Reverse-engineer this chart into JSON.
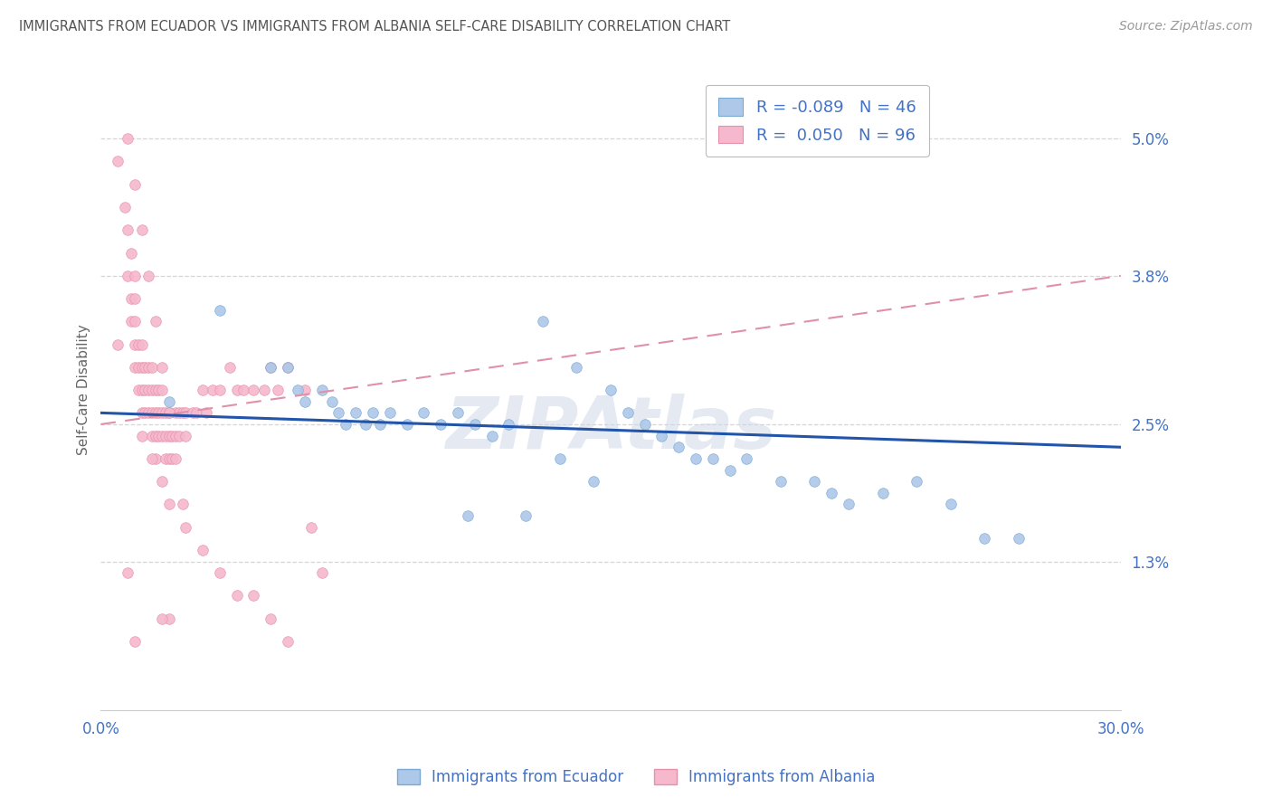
{
  "title": "IMMIGRANTS FROM ECUADOR VS IMMIGRANTS FROM ALBANIA SELF-CARE DISABILITY CORRELATION CHART",
  "source": "Source: ZipAtlas.com",
  "ylabel": "Self-Care Disability",
  "xlim": [
    0.0,
    0.3
  ],
  "ylim": [
    0.0,
    0.056
  ],
  "yticks": [
    0.013,
    0.025,
    0.038,
    0.05
  ],
  "ytick_labels": [
    "1.3%",
    "2.5%",
    "3.8%",
    "5.0%"
  ],
  "xtick_labels": [
    "0.0%",
    "30.0%"
  ],
  "xtick_vals": [
    0.0,
    0.3
  ],
  "ecuador_color_fill": "#adc8e8",
  "ecuador_color_edge": "#7aaad4",
  "albania_color_fill": "#f5b8cc",
  "albania_color_edge": "#e890aa",
  "ecuador_line_color": "#2255aa",
  "albania_line_color": "#e090a8",
  "legend_label_ecuador": "R = -0.089   N = 46",
  "legend_label_albania": "R =  0.050   N = 96",
  "bottom_legend_ecuador": "Immigrants from Ecuador",
  "bottom_legend_albania": "Immigrants from Albania",
  "ecuador_trend_x": [
    0.0,
    0.3
  ],
  "ecuador_trend_y": [
    0.026,
    0.023
  ],
  "albania_trend_x": [
    0.0,
    0.3
  ],
  "albania_trend_y": [
    0.025,
    0.038
  ],
  "ecuador_x": [
    0.02,
    0.035,
    0.05,
    0.055,
    0.058,
    0.06,
    0.065,
    0.068,
    0.07,
    0.072,
    0.075,
    0.078,
    0.08,
    0.082,
    0.085,
    0.09,
    0.095,
    0.1,
    0.105,
    0.11,
    0.115,
    0.12,
    0.13,
    0.14,
    0.15,
    0.155,
    0.16,
    0.165,
    0.17,
    0.175,
    0.18,
    0.185,
    0.19,
    0.2,
    0.21,
    0.215,
    0.22,
    0.23,
    0.24,
    0.25,
    0.26,
    0.27,
    0.135,
    0.145,
    0.125,
    0.108
  ],
  "ecuador_y": [
    0.027,
    0.035,
    0.03,
    0.03,
    0.028,
    0.027,
    0.028,
    0.027,
    0.026,
    0.025,
    0.026,
    0.025,
    0.026,
    0.025,
    0.026,
    0.025,
    0.026,
    0.025,
    0.026,
    0.025,
    0.024,
    0.025,
    0.034,
    0.03,
    0.028,
    0.026,
    0.025,
    0.024,
    0.023,
    0.022,
    0.022,
    0.021,
    0.022,
    0.02,
    0.02,
    0.019,
    0.018,
    0.019,
    0.02,
    0.018,
    0.015,
    0.015,
    0.022,
    0.02,
    0.017,
    0.017
  ],
  "albania_x": [
    0.005,
    0.005,
    0.007,
    0.008,
    0.008,
    0.009,
    0.009,
    0.009,
    0.01,
    0.01,
    0.01,
    0.01,
    0.01,
    0.011,
    0.011,
    0.011,
    0.012,
    0.012,
    0.012,
    0.012,
    0.012,
    0.013,
    0.013,
    0.013,
    0.014,
    0.014,
    0.014,
    0.015,
    0.015,
    0.015,
    0.015,
    0.016,
    0.016,
    0.016,
    0.016,
    0.017,
    0.017,
    0.017,
    0.018,
    0.018,
    0.018,
    0.019,
    0.019,
    0.019,
    0.02,
    0.02,
    0.02,
    0.021,
    0.021,
    0.022,
    0.022,
    0.023,
    0.023,
    0.024,
    0.025,
    0.025,
    0.027,
    0.028,
    0.03,
    0.031,
    0.033,
    0.035,
    0.038,
    0.04,
    0.042,
    0.045,
    0.048,
    0.05,
    0.052,
    0.055,
    0.06,
    0.062,
    0.065,
    0.015,
    0.018,
    0.02,
    0.025,
    0.03,
    0.035,
    0.04,
    0.045,
    0.05,
    0.055,
    0.02,
    0.01,
    0.008,
    0.008,
    0.01,
    0.012,
    0.014,
    0.016,
    0.018,
    0.02,
    0.022,
    0.024,
    0.018
  ],
  "albania_y": [
    0.032,
    0.048,
    0.044,
    0.042,
    0.038,
    0.04,
    0.036,
    0.034,
    0.038,
    0.036,
    0.034,
    0.032,
    0.03,
    0.032,
    0.03,
    0.028,
    0.032,
    0.03,
    0.028,
    0.026,
    0.024,
    0.03,
    0.028,
    0.026,
    0.03,
    0.028,
    0.026,
    0.03,
    0.028,
    0.026,
    0.024,
    0.028,
    0.026,
    0.024,
    0.022,
    0.028,
    0.026,
    0.024,
    0.028,
    0.026,
    0.024,
    0.026,
    0.024,
    0.022,
    0.026,
    0.024,
    0.022,
    0.024,
    0.022,
    0.026,
    0.024,
    0.026,
    0.024,
    0.026,
    0.026,
    0.024,
    0.026,
    0.026,
    0.028,
    0.026,
    0.028,
    0.028,
    0.03,
    0.028,
    0.028,
    0.028,
    0.028,
    0.03,
    0.028,
    0.03,
    0.028,
    0.016,
    0.012,
    0.022,
    0.02,
    0.018,
    0.016,
    0.014,
    0.012,
    0.01,
    0.01,
    0.008,
    0.006,
    0.008,
    0.006,
    0.012,
    0.05,
    0.046,
    0.042,
    0.038,
    0.034,
    0.03,
    0.026,
    0.022,
    0.018,
    0.008
  ]
}
